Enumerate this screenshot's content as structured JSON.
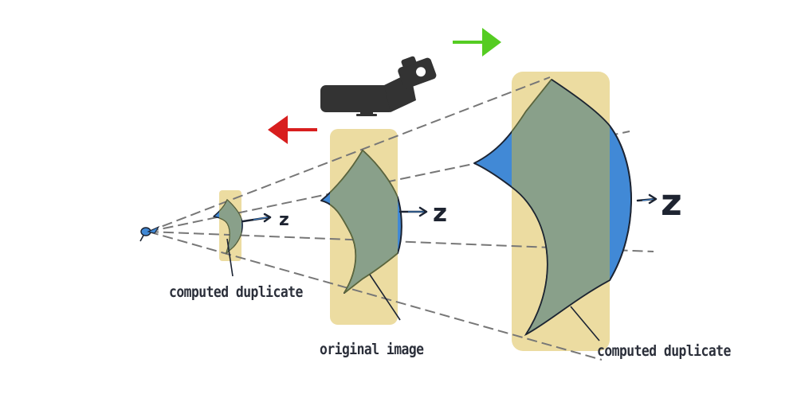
{
  "labels": {
    "small_duplicate": "computed duplicate",
    "original": "original image",
    "large_duplicate": "computed duplicate"
  },
  "axis_label": "z",
  "colors": {
    "highlight": "#ecdca1",
    "wedge": "#89a08a",
    "wedge_edge": "#4189d6",
    "arrow_forward": "#55cc22",
    "arrow_backward": "#d81e1e",
    "camera": "#333333",
    "ray": "#777777",
    "text": "#2b2f3a"
  },
  "icons": {
    "camera": "camera-telephoto-icon",
    "forward_arrow": "arrow-right-icon",
    "backward_arrow": "arrow-left-icon",
    "eye": "eye-point-icon"
  }
}
